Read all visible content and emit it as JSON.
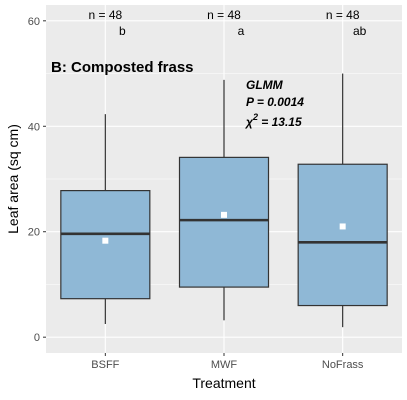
{
  "chart_data": {
    "type": "boxplot",
    "title": "B: Composted frass",
    "xlabel": "Treatment",
    "ylabel": "Leaf area (sq cm)",
    "ylim": [
      -3,
      63
    ],
    "yticks": [
      0,
      20,
      40,
      60
    ],
    "grid": true,
    "categories": [
      "BSFF",
      "MWF",
      "NoFrass"
    ],
    "boxes": [
      {
        "category": "BSFF",
        "whisker_low": 2.5,
        "q1": 7.3,
        "median": 19.6,
        "q3": 27.8,
        "whisker_high": 42.3,
        "mean": 18.3,
        "n_label": "n = 48",
        "group_letter": "b"
      },
      {
        "category": "MWF",
        "whisker_low": 3.2,
        "q1": 9.5,
        "median": 22.2,
        "q3": 34.1,
        "whisker_high": 48.8,
        "mean": 23.2,
        "n_label": "n = 48",
        "group_letter": "a"
      },
      {
        "category": "NoFrass",
        "whisker_low": 1.9,
        "q1": 6.0,
        "median": 18.0,
        "q3": 32.8,
        "whisker_high": 50.0,
        "mean": 21.0,
        "n_label": "n = 48",
        "group_letter": "ab"
      }
    ],
    "stats": {
      "line1": "GLMM",
      "line2": "P = 0.0014",
      "line3_symbol": "χ",
      "line3_sup": "2",
      "line3_value": " = 13.15"
    },
    "colors": {
      "panel_bg": "#ebebeb",
      "grid": "#ffffff",
      "box_fill": "#8fb8d6",
      "box_stroke": "#333333",
      "mean_marker": "#ffffff"
    }
  }
}
